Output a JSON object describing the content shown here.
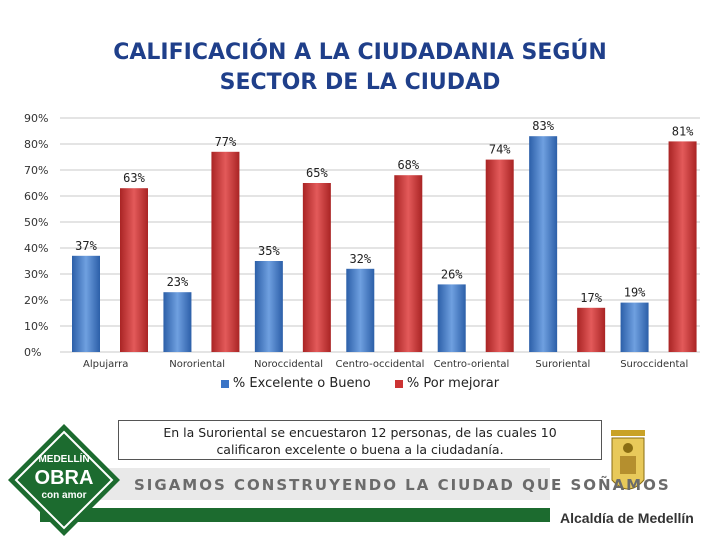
{
  "title_line1": "CALIFICACIÓN A LA CIUDADANIA SEGÚN",
  "title_line2": "SECTOR DE LA CIUDAD",
  "colors": {
    "series1": "#3a74c6",
    "series2": "#cc3333",
    "title": "#1f3f8a",
    "green": "#1c6b2f"
  },
  "chart_data": {
    "type": "bar",
    "categories": [
      "Alpujarra",
      "Nororiental",
      "Noroccidental",
      "Centro-occidental",
      "Centro-oriental",
      "Suroriental",
      "Suroccidental"
    ],
    "series": [
      {
        "name": "% Excelente o Bueno",
        "values": [
          37,
          23,
          35,
          32,
          26,
          83,
          19
        ]
      },
      {
        "name": "% Por mejorar",
        "values": [
          63,
          77,
          65,
          68,
          74,
          17,
          81
        ]
      }
    ],
    "ylim": [
      0,
      90
    ],
    "yticks": [
      "0%",
      "10%",
      "20%",
      "30%",
      "40%",
      "50%",
      "60%",
      "70%",
      "80%",
      "90%"
    ],
    "data_labels": [
      [
        "37%",
        "23%",
        "35%",
        "32%",
        "26%",
        "83%",
        "19%"
      ],
      [
        "63%",
        "77%",
        "65%",
        "68%",
        "74%",
        "17%",
        "81%"
      ]
    ],
    "legend_position": "bottom",
    "grid": true
  },
  "legend": {
    "s1": "% Excelente o Bueno",
    "s2": "% Por mejorar"
  },
  "note": {
    "line1": "En la Suroriental se encuestaron 12 personas, de las cuales 10",
    "line2": "calificaron excelente o buena a la ciudadanía."
  },
  "footer": {
    "logo_line1": "MEDELLÍN",
    "logo_line2": "OBRA",
    "logo_line3": "con amor",
    "slogan": "SIGAMOS CONSTRUYENDO LA CIUDAD QUE SOÑAMOS",
    "alcaldia": "Alcaldía de Medellín"
  }
}
